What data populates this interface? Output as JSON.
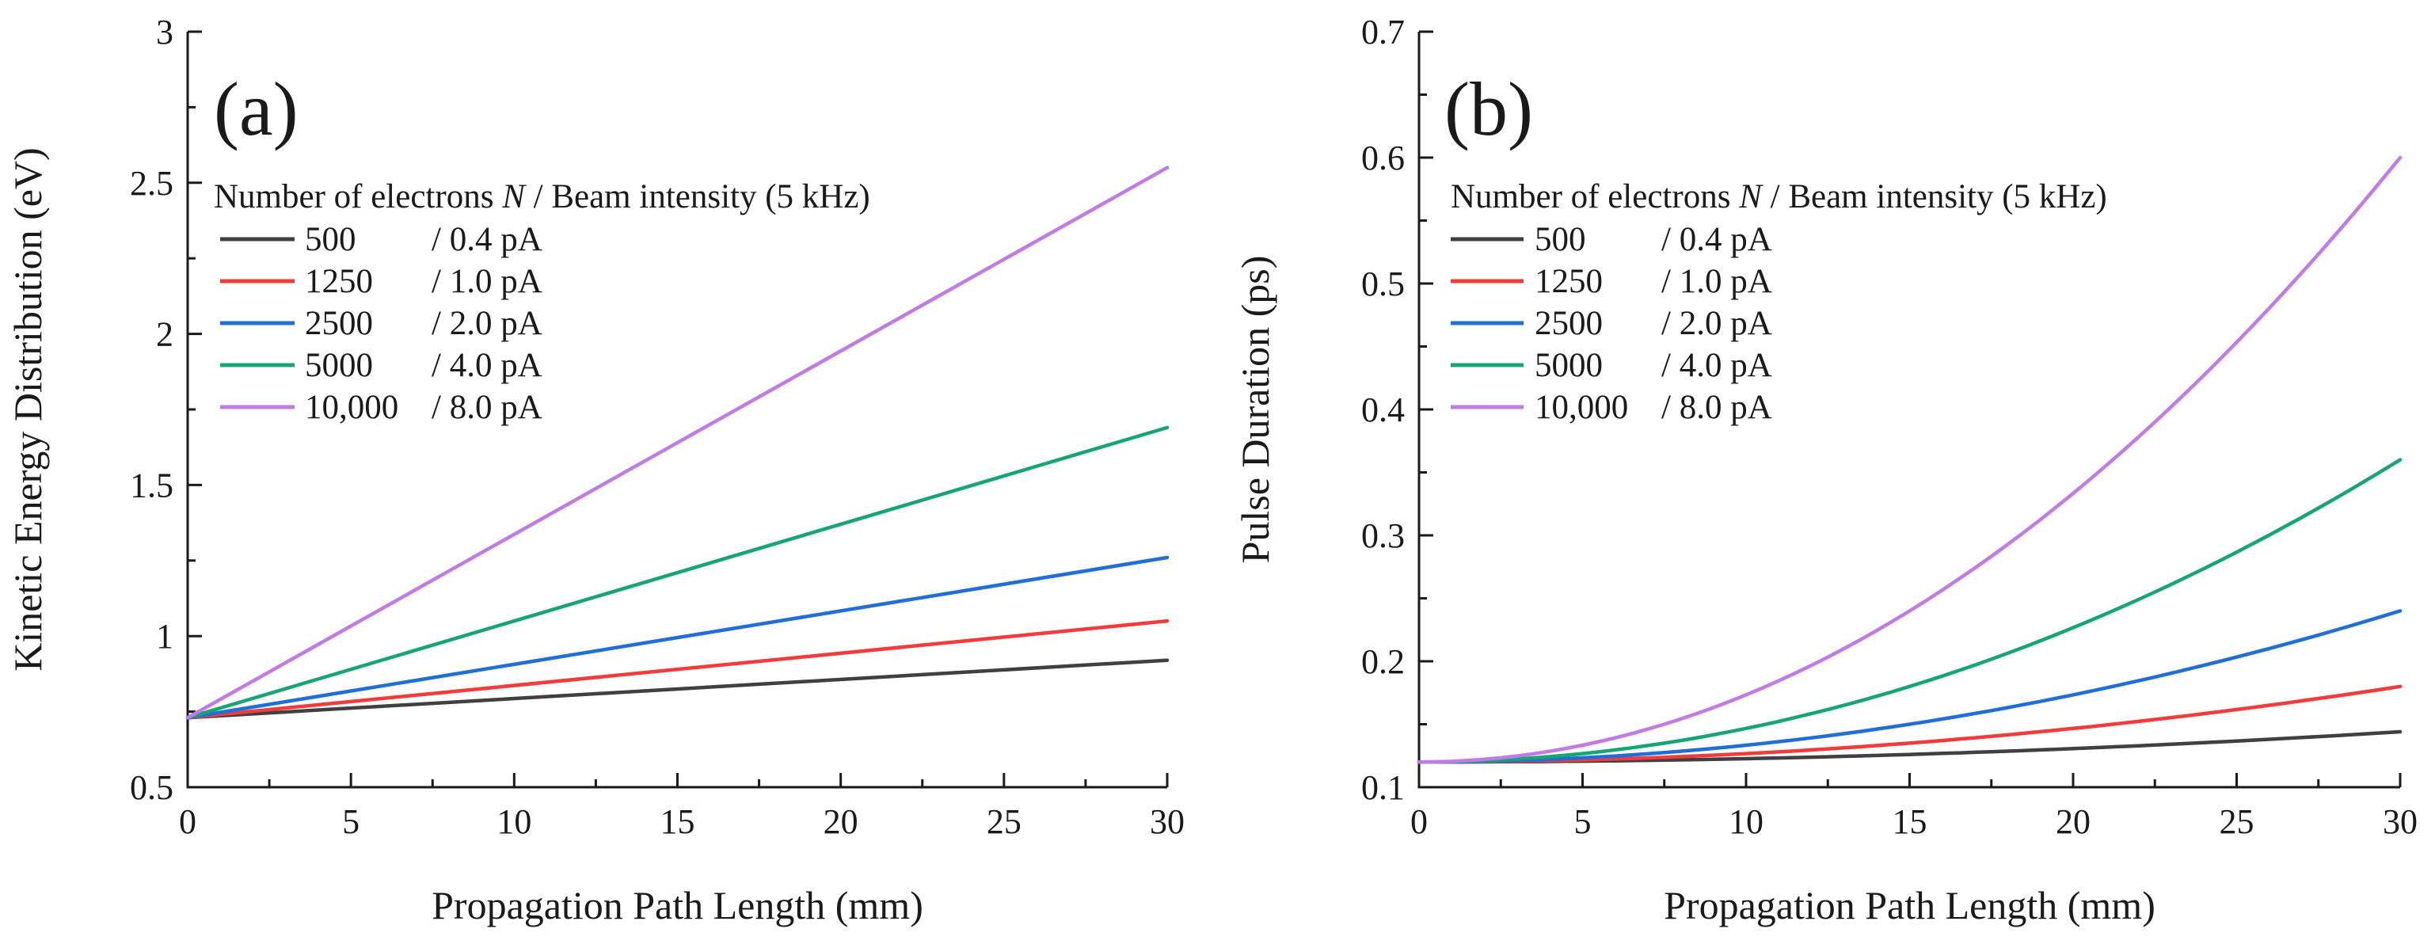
{
  "chart_data": [
    {
      "type": "line",
      "panel_label": "(a)",
      "xlabel": "Propagation Path Length (mm)",
      "ylabel": "Kinetic Energy Distribution (eV)",
      "xlim": [
        0,
        30
      ],
      "ylim": [
        0.5,
        3
      ],
      "x_major_ticks": [
        0,
        5,
        10,
        15,
        20,
        25,
        30
      ],
      "x_tick_labels": [
        "0",
        "5",
        "10",
        "15",
        "20",
        "25",
        "30"
      ],
      "y_major_ticks": [
        0.5,
        1,
        1.5,
        2,
        2.5,
        3
      ],
      "y_tick_labels": [
        "0.5",
        "1",
        "1.5",
        "2",
        "2.5",
        "3"
      ],
      "legend": {
        "title_prefix": "Number of electrons ",
        "title_italic": "N",
        "title_suffix": " / Beam intensity (5 kHz)",
        "placement": "upper-left"
      },
      "series": [
        {
          "name": "500",
          "intensity": "/ 0.4 pA",
          "color": "#404040",
          "x": [
            0,
            30
          ],
          "y": [
            0.73,
            0.92
          ]
        },
        {
          "name": "1250",
          "intensity": "/ 1.0 pA",
          "color": "#f23b3b",
          "x": [
            0,
            30
          ],
          "y": [
            0.73,
            1.05
          ]
        },
        {
          "name": "2500",
          "intensity": "/ 2.0 pA",
          "color": "#1f6fd6",
          "x": [
            0,
            30
          ],
          "y": [
            0.73,
            1.26
          ]
        },
        {
          "name": "5000",
          "intensity": "/ 4.0 pA",
          "color": "#17a673",
          "x": [
            0,
            30
          ],
          "y": [
            0.73,
            1.69
          ]
        },
        {
          "name": "10,000",
          "intensity": "/ 8.0 pA",
          "color": "#c07be6",
          "x": [
            0,
            30
          ],
          "y": [
            0.73,
            2.55
          ]
        }
      ]
    },
    {
      "type": "line",
      "panel_label": "(b)",
      "xlabel": "Propagation Path Length (mm)",
      "ylabel": "Pulse Duration (ps)",
      "xlim": [
        0,
        30
      ],
      "ylim": [
        0.1,
        0.7
      ],
      "x_major_ticks": [
        0,
        5,
        10,
        15,
        20,
        25,
        30
      ],
      "x_tick_labels": [
        "0",
        "5",
        "10",
        "15",
        "20",
        "25",
        "30"
      ],
      "y_major_ticks": [
        0.1,
        0.2,
        0.3,
        0.4,
        0.5,
        0.6,
        0.7
      ],
      "y_tick_labels": [
        "0.1",
        "0.2",
        "0.3",
        "0.4",
        "0.5",
        "0.6",
        "0.7"
      ],
      "legend": {
        "title_prefix": "Number of electrons ",
        "title_italic": "N",
        "title_suffix": " / Beam intensity (5 kHz)",
        "placement": "upper-left"
      },
      "series": [
        {
          "name": "500",
          "intensity": "/ 0.4 pA",
          "color": "#404040",
          "x": [
            0,
            5,
            10,
            15,
            20,
            25,
            30
          ],
          "y": [
            0.12,
            0.1207,
            0.1227,
            0.126,
            0.1307,
            0.1367,
            0.144
          ]
        },
        {
          "name": "1250",
          "intensity": "/ 1.0 pA",
          "color": "#f23b3b",
          "x": [
            0,
            5,
            10,
            15,
            20,
            25,
            30
          ],
          "y": [
            0.12,
            0.1217,
            0.1267,
            0.135,
            0.1467,
            0.1617,
            0.18
          ]
        },
        {
          "name": "2500",
          "intensity": "/ 2.0 pA",
          "color": "#1f6fd6",
          "x": [
            0,
            5,
            10,
            15,
            20,
            25,
            30
          ],
          "y": [
            0.12,
            0.1233,
            0.1333,
            0.15,
            0.1733,
            0.2033,
            0.24
          ]
        },
        {
          "name": "5000",
          "intensity": "/ 4.0 pA",
          "color": "#17a673",
          "x": [
            0,
            5,
            10,
            15,
            20,
            25,
            30
          ],
          "y": [
            0.12,
            0.1267,
            0.1467,
            0.18,
            0.2267,
            0.2867,
            0.36
          ]
        },
        {
          "name": "10,000",
          "intensity": "/ 8.0 pA",
          "color": "#c07be6",
          "x": [
            0,
            5,
            10,
            15,
            20,
            25,
            30
          ],
          "y": [
            0.12,
            0.1333,
            0.1733,
            0.24,
            0.3333,
            0.4533,
            0.6
          ]
        }
      ]
    }
  ]
}
